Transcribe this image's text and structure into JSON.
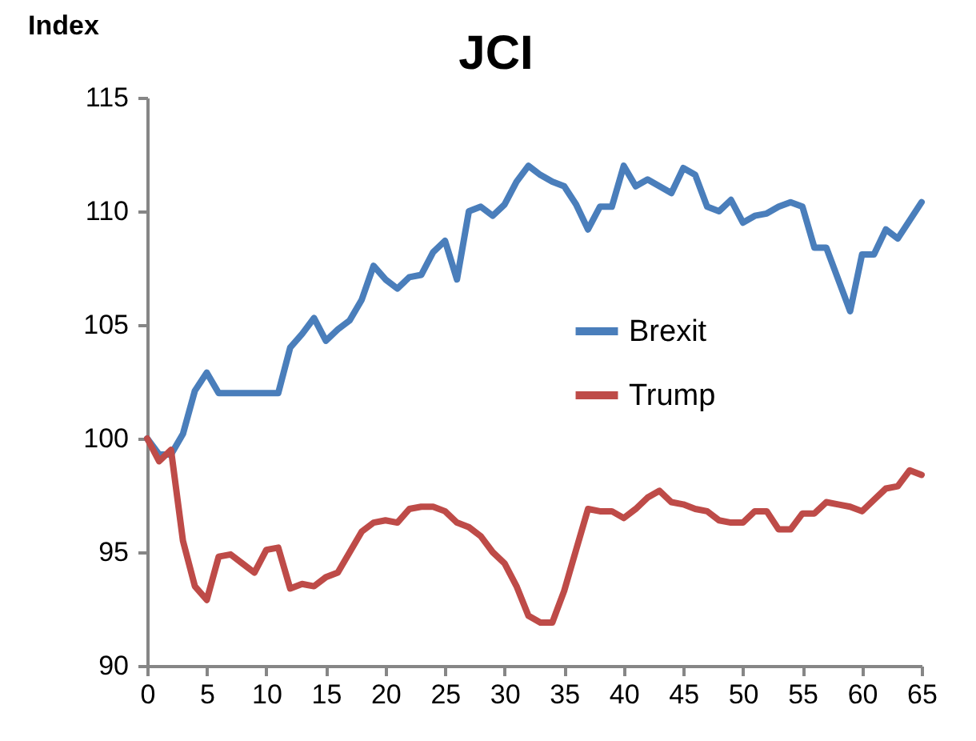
{
  "chart_data": {
    "type": "line",
    "title": "JCI",
    "ylabel": "Index",
    "x": [
      0,
      1,
      2,
      3,
      4,
      5,
      6,
      7,
      8,
      9,
      10,
      11,
      12,
      13,
      14,
      15,
      16,
      17,
      18,
      19,
      20,
      21,
      22,
      23,
      24,
      25,
      26,
      27,
      28,
      29,
      30,
      31,
      32,
      33,
      34,
      35,
      36,
      37,
      38,
      39,
      40,
      41,
      42,
      43,
      44,
      45,
      46,
      47,
      48,
      49,
      50,
      51,
      52,
      53,
      54,
      55,
      56,
      57,
      58,
      59,
      60,
      61,
      62,
      63,
      64,
      65
    ],
    "series": [
      {
        "name": "Brexit",
        "color": "#4a7ebb",
        "values": [
          100,
          99.3,
          99.3,
          100.2,
          102.1,
          102.9,
          102.0,
          102.0,
          102.0,
          102.0,
          102.0,
          102.0,
          104.0,
          104.6,
          105.3,
          104.3,
          104.8,
          105.2,
          106.1,
          107.6,
          107.0,
          106.6,
          107.1,
          107.2,
          108.2,
          108.7,
          107.0,
          110.0,
          110.2,
          109.8,
          110.3,
          111.3,
          112.0,
          111.6,
          111.3,
          111.1,
          110.3,
          109.2,
          110.2,
          110.2,
          112.0,
          111.1,
          111.4,
          111.1,
          110.8,
          111.9,
          111.6,
          110.2,
          110.0,
          110.5,
          109.5,
          109.8,
          109.9,
          110.2,
          110.4,
          110.2,
          108.4,
          108.4,
          107.0,
          105.6,
          108.1,
          108.1,
          109.2,
          108.8,
          109.6,
          110.4
        ]
      },
      {
        "name": "Trump",
        "color": "#be4b48",
        "values": [
          100,
          99.0,
          99.5,
          95.5,
          93.5,
          92.9,
          94.8,
          94.9,
          94.5,
          94.1,
          95.1,
          95.2,
          93.4,
          93.6,
          93.5,
          93.9,
          94.1,
          95.0,
          95.9,
          96.3,
          96.4,
          96.3,
          96.9,
          97.0,
          97.0,
          96.8,
          96.3,
          96.1,
          95.7,
          95.0,
          94.5,
          93.5,
          92.2,
          91.9,
          91.9,
          93.3,
          95.1,
          96.9,
          96.8,
          96.8,
          96.5,
          96.9,
          97.4,
          97.7,
          97.2,
          97.1,
          96.9,
          96.8,
          96.4,
          96.3,
          96.3,
          96.8,
          96.8,
          96.0,
          96.0,
          96.7,
          96.7,
          97.2,
          97.1,
          97.0,
          96.8,
          97.3,
          97.8,
          97.9,
          98.6,
          98.4
        ]
      }
    ],
    "xlim": [
      0,
      65
    ],
    "xticks": [
      0,
      5,
      10,
      15,
      20,
      25,
      30,
      35,
      40,
      45,
      50,
      55,
      60,
      65
    ],
    "ylim": [
      90,
      115
    ],
    "yticks": [
      90,
      95,
      100,
      105,
      110,
      115
    ],
    "grid": false,
    "legend": "right"
  }
}
